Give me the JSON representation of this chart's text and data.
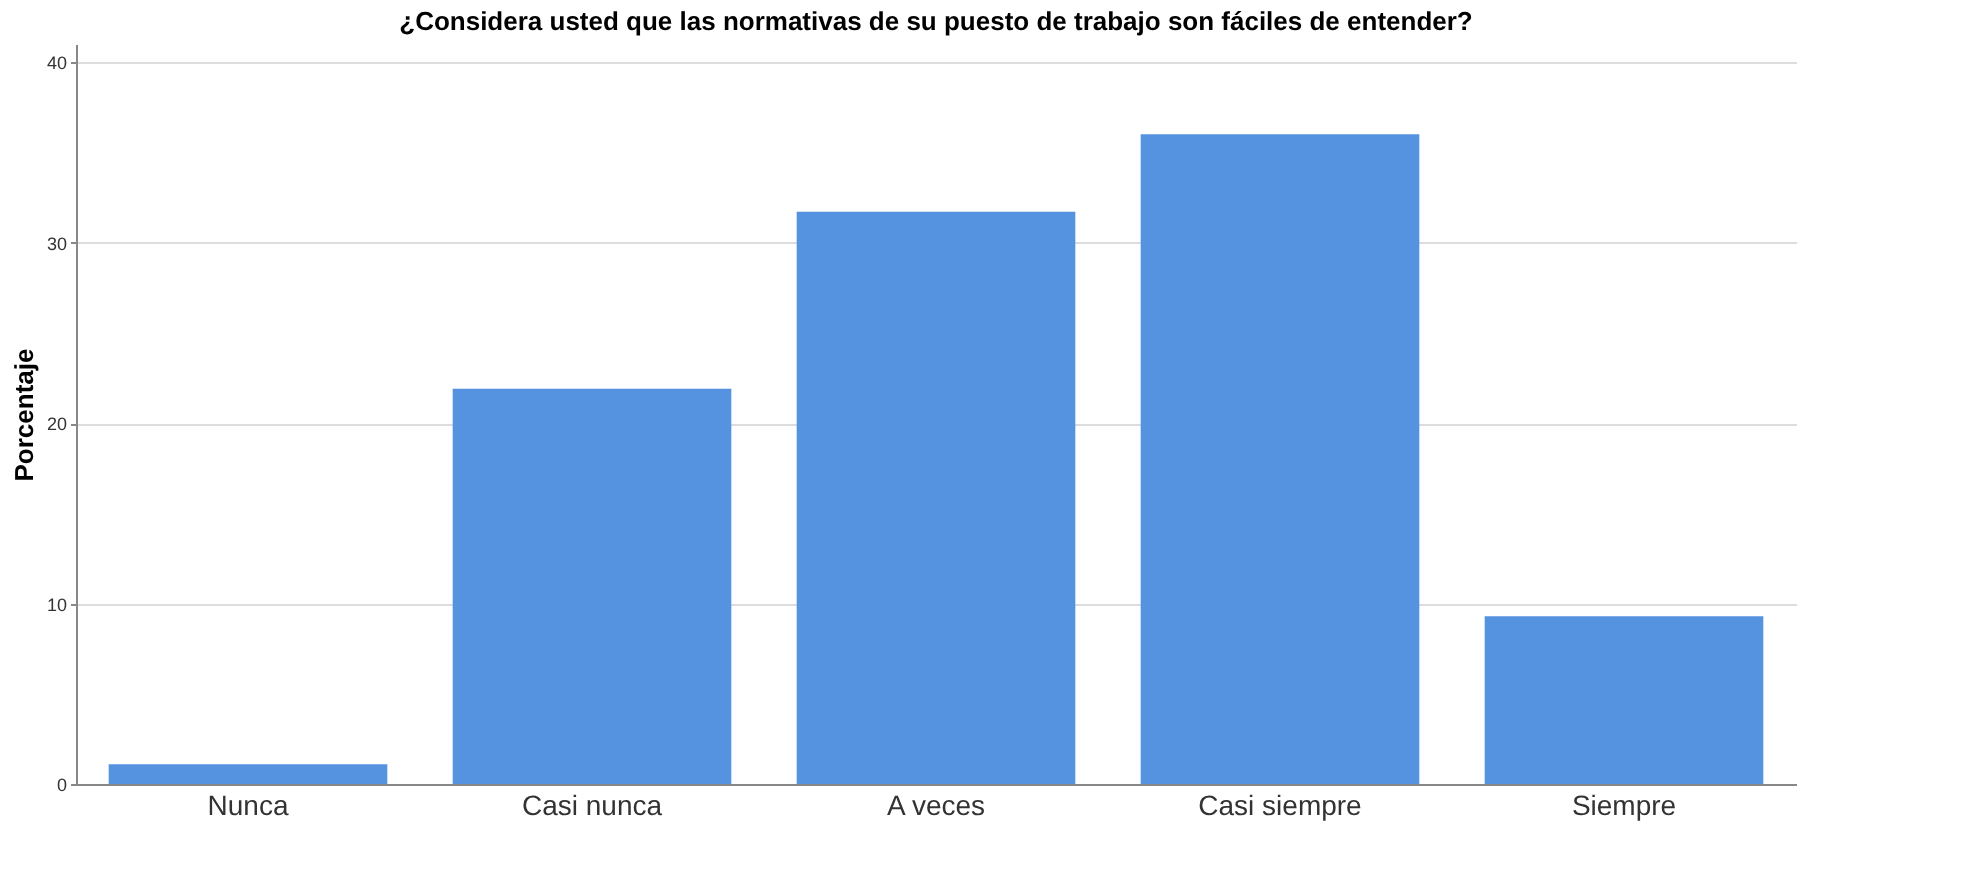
{
  "chart_data": {
    "type": "bar",
    "title": "¿Considera usted que las normativas de su puesto de trabajo son fáciles de entender?",
    "ylabel": "Porcentaje",
    "categories": [
      "Nunca",
      "Casi nunca",
      "A veces",
      "Casi siempre",
      "Siempre"
    ],
    "values": [
      1.1,
      21.9,
      31.7,
      36.0,
      9.3
    ],
    "color": "#5592e0",
    "ylim": [
      0,
      41
    ],
    "yticks": [
      0,
      10,
      20,
      30,
      40
    ],
    "grid": "y"
  }
}
